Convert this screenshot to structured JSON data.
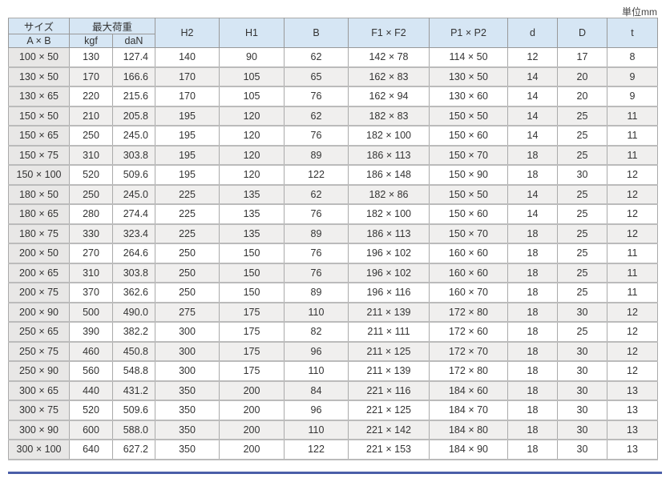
{
  "unit": "単位mm",
  "header": {
    "size": "サイズ",
    "size_sub": "A × B",
    "load": "最大荷重",
    "kgf": "kgf",
    "dan": "daN",
    "cols": [
      "H2",
      "H1",
      "B",
      "F1 × F2",
      "P1 × P2",
      "d",
      "D",
      "t"
    ]
  },
  "rows": [
    [
      "100 × 50",
      "130",
      "127.4",
      "140",
      "90",
      "62",
      "142 ×  78",
      "114 × 50",
      "12",
      "17",
      "8"
    ],
    [
      "130 × 50",
      "170",
      "166.6",
      "170",
      "105",
      "65",
      "162 ×  83",
      "130 × 50",
      "14",
      "20",
      "9"
    ],
    [
      "130 × 65",
      "220",
      "215.6",
      "170",
      "105",
      "76",
      "162 ×  94",
      "130 × 60",
      "14",
      "20",
      "9"
    ],
    [
      "150 × 50",
      "210",
      "205.8",
      "195",
      "120",
      "62",
      "182 ×  83",
      "150 × 50",
      "14",
      "25",
      "11"
    ],
    [
      "150 × 65",
      "250",
      "245.0",
      "195",
      "120",
      "76",
      "182 × 100",
      "150 × 60",
      "14",
      "25",
      "11"
    ],
    [
      "150 × 75",
      "310",
      "303.8",
      "195",
      "120",
      "89",
      "186 × 113",
      "150 × 70",
      "18",
      "25",
      "11"
    ],
    [
      "150 × 100",
      "520",
      "509.6",
      "195",
      "120",
      "122",
      "186 × 148",
      "150 × 90",
      "18",
      "30",
      "12"
    ],
    [
      "180 × 50",
      "250",
      "245.0",
      "225",
      "135",
      "62",
      "182 ×  86",
      "150 × 50",
      "14",
      "25",
      "12"
    ],
    [
      "180 × 65",
      "280",
      "274.4",
      "225",
      "135",
      "76",
      "182 × 100",
      "150 × 60",
      "14",
      "25",
      "12"
    ],
    [
      "180 × 75",
      "330",
      "323.4",
      "225",
      "135",
      "89",
      "186 × 113",
      "150 × 70",
      "18",
      "25",
      "12"
    ],
    [
      "200 × 50",
      "270",
      "264.6",
      "250",
      "150",
      "76",
      "196 × 102",
      "160 × 60",
      "18",
      "25",
      "11"
    ],
    [
      "200 × 65",
      "310",
      "303.8",
      "250",
      "150",
      "76",
      "196 × 102",
      "160 × 60",
      "18",
      "25",
      "11"
    ],
    [
      "200 × 75",
      "370",
      "362.6",
      "250",
      "150",
      "89",
      "196 × 116",
      "160 × 70",
      "18",
      "25",
      "11"
    ],
    [
      "200 × 90",
      "500",
      "490.0",
      "275",
      "175",
      "110",
      "211 × 139",
      "172 × 80",
      "18",
      "30",
      "12"
    ],
    [
      "250 × 65",
      "390",
      "382.2",
      "300",
      "175",
      "82",
      "211 × 111",
      "172 × 60",
      "18",
      "25",
      "12"
    ],
    [
      "250 × 75",
      "460",
      "450.8",
      "300",
      "175",
      "96",
      "211 × 125",
      "172 × 70",
      "18",
      "30",
      "12"
    ],
    [
      "250 × 90",
      "560",
      "548.8",
      "300",
      "175",
      "110",
      "211 × 139",
      "172 × 80",
      "18",
      "30",
      "12"
    ],
    [
      "300 × 65",
      "440",
      "431.2",
      "350",
      "200",
      "84",
      "221 × 116",
      "184 × 60",
      "18",
      "30",
      "13"
    ],
    [
      "300 × 75",
      "520",
      "509.6",
      "350",
      "200",
      "96",
      "221 × 125",
      "184 × 70",
      "18",
      "30",
      "13"
    ],
    [
      "300 × 90",
      "600",
      "588.0",
      "350",
      "200",
      "110",
      "221 × 142",
      "184 × 80",
      "18",
      "30",
      "13"
    ],
    [
      "300 × 100",
      "640",
      "627.2",
      "350",
      "200",
      "122",
      "221 × 153",
      "184 × 90",
      "18",
      "30",
      "13"
    ]
  ],
  "colors": {
    "header_bg": "#d6e6f4",
    "row_alt": "#f0efee",
    "rule": "#4a5ea8"
  }
}
